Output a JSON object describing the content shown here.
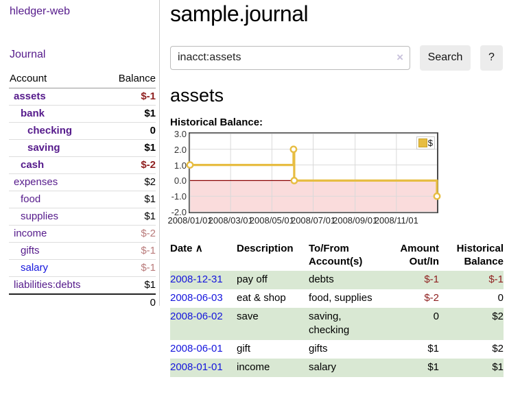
{
  "app": {
    "title": "hledger-web"
  },
  "sidebar": {
    "journal_link": "Journal",
    "accounts": {
      "header": {
        "account": "Account",
        "balance": "Balance"
      },
      "rows": [
        {
          "name": "assets",
          "balance": "$-1"
        },
        {
          "name": "bank",
          "balance": "$1"
        },
        {
          "name": "checking",
          "balance": "0"
        },
        {
          "name": "saving",
          "balance": "$1"
        },
        {
          "name": "cash",
          "balance": "$-2"
        },
        {
          "name": "expenses",
          "balance": "$2"
        },
        {
          "name": "food",
          "balance": "$1"
        },
        {
          "name": "supplies",
          "balance": "$1"
        },
        {
          "name": "income",
          "balance": "$-2"
        },
        {
          "name": "gifts",
          "balance": "$-1"
        },
        {
          "name": "salary",
          "balance": "$-1"
        },
        {
          "name": "liabilities:debts",
          "balance": "$1"
        }
      ],
      "total": "0"
    }
  },
  "main": {
    "title": "sample.journal",
    "search": {
      "value": "inacct:assets",
      "clear_icon": "×",
      "search_button": "Search",
      "help_button": "?"
    },
    "account_title": "assets",
    "chart_title": "Historical Balance:"
  },
  "chart_data": {
    "type": "line",
    "title": "Historical Balance:",
    "step": "after",
    "series": [
      {
        "name": "$",
        "points": [
          {
            "date": "2008-01-01",
            "value": 1
          },
          {
            "date": "2008-06-02",
            "value": 2
          },
          {
            "date": "2008-06-03",
            "value": 0
          },
          {
            "date": "2008-12-31",
            "value": -1
          }
        ]
      }
    ],
    "x_range": [
      "2008-01-01",
      "2008-12-31"
    ],
    "x_ticks": [
      "2008/01/01",
      "2008/03/01",
      "2008/05/01",
      "2008/07/01",
      "2008/09/01",
      "2008/11/01"
    ],
    "y_ticks": [
      "3.0",
      "2.0",
      "1.0",
      "0.0",
      "-1.0",
      "-2.0"
    ],
    "ylim": [
      -2,
      3
    ],
    "grid": true,
    "legend": {
      "label": "$",
      "position": "top-right"
    },
    "colors": {
      "line": "#e7bd42",
      "marker_fill": "#ffffff",
      "negative_region": "#fadcdc",
      "zero_line": "#8b0000",
      "grid": "#d9d9d9"
    }
  },
  "transactions": {
    "headers": {
      "date": "Date",
      "sort_icon": "∧",
      "description": "Description",
      "tofrom": "To/From Account(s)",
      "amount": "Amount Out/In",
      "balance": "Historical Balance"
    },
    "rows": [
      {
        "date": "2008-12-31",
        "description": "pay off",
        "accounts": "debts",
        "amount": "$-1",
        "balance": "$-1"
      },
      {
        "date": "2008-06-03",
        "description": "eat & shop",
        "accounts": "food, supplies",
        "amount": "$-2",
        "balance": "0"
      },
      {
        "date": "2008-06-02",
        "description": "save",
        "accounts": "saving, checking",
        "amount": "0",
        "balance": "$2"
      },
      {
        "date": "2008-06-01",
        "description": "gift",
        "accounts": "gifts",
        "amount": "$1",
        "balance": "$2"
      },
      {
        "date": "2008-01-01",
        "description": "income",
        "accounts": "salary",
        "amount": "$1",
        "balance": "$1"
      }
    ]
  }
}
